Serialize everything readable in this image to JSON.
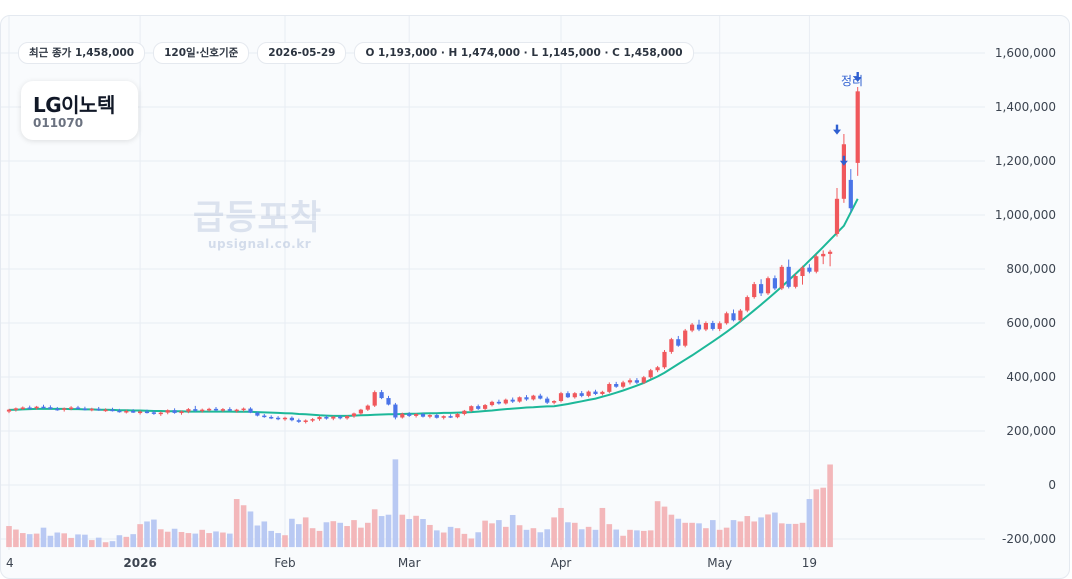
{
  "pills": {
    "last_close": "최근 종가 1,458,000",
    "period": "120일·신호기준",
    "date": "2026-05-29",
    "ohlc": "O 1,193,000 · H 1,474,000 · L 1,145,000 · C 1,458,000"
  },
  "stock": {
    "name": "LG이노텍",
    "code": "011070"
  },
  "watermark": {
    "title": "급등포착",
    "url": "upsignal.co.kr"
  },
  "signal_label": "정리",
  "colors": {
    "up": "#f0585c",
    "down": "#4a74e8",
    "ma": "#1db899",
    "vol_up": "#f3b7ba",
    "vol_down": "#b9c9f3",
    "arrow": "#2f5fd0"
  },
  "chart_data": {
    "type": "candlestick",
    "title": "",
    "xlabel": "",
    "ylabel": "",
    "ylim": [
      -230000,
      1730000
    ],
    "y_ticks": [
      1600000,
      1400000,
      1200000,
      1000000,
      800000,
      600000,
      400000,
      200000,
      0,
      -200000
    ],
    "y_tick_labels": [
      "1,600,000",
      "1,400,000",
      "1,200,000",
      "1,000,000",
      "800,000",
      "600,000",
      "400,000",
      "200,000",
      "0",
      "-200,000"
    ],
    "x_ticks": [
      {
        "label": "4",
        "index": 0
      },
      {
        "label": "2026",
        "index": 19
      },
      {
        "label": "Feb",
        "index": 40
      },
      {
        "label": "Mar",
        "index": 58
      },
      {
        "label": "Apr",
        "index": 80
      },
      {
        "label": "May",
        "index": 103
      },
      {
        "label": "19",
        "index": 116
      }
    ],
    "grid": true,
    "candles": [
      [
        272000,
        282000,
        266000,
        279000
      ],
      [
        279000,
        287000,
        272000,
        284000
      ],
      [
        284000,
        291000,
        278000,
        287000
      ],
      [
        287000,
        294000,
        281000,
        285000
      ],
      [
        285000,
        293000,
        279000,
        290000
      ],
      [
        290000,
        297000,
        283000,
        288000
      ],
      [
        288000,
        295000,
        280000,
        282000
      ],
      [
        282000,
        289000,
        275000,
        279000
      ],
      [
        279000,
        287000,
        272000,
        284000
      ],
      [
        284000,
        292000,
        277000,
        287000
      ],
      [
        287000,
        293000,
        280000,
        283000
      ],
      [
        283000,
        290000,
        276000,
        279000
      ],
      [
        279000,
        286000,
        273000,
        282000
      ],
      [
        282000,
        289000,
        275000,
        277000
      ],
      [
        277000,
        284000,
        271000,
        279000
      ],
      [
        279000,
        286000,
        272000,
        275000
      ],
      [
        275000,
        282000,
        268000,
        271000
      ],
      [
        271000,
        279000,
        265000,
        274000
      ],
      [
        274000,
        281000,
        267000,
        268000
      ],
      [
        268000,
        276000,
        261000,
        272000
      ],
      [
        272000,
        279000,
        265000,
        269000
      ],
      [
        269000,
        276000,
        260000,
        264000
      ],
      [
        264000,
        272000,
        256000,
        268000
      ],
      [
        268000,
        280000,
        262000,
        277000
      ],
      [
        277000,
        284000,
        264000,
        267000
      ],
      [
        267000,
        276000,
        260000,
        272000
      ],
      [
        272000,
        285000,
        266000,
        281000
      ],
      [
        281000,
        293000,
        271000,
        275000
      ],
      [
        275000,
        283000,
        268000,
        279000
      ],
      [
        279000,
        286000,
        272000,
        282000
      ],
      [
        282000,
        289000,
        274000,
        278000
      ],
      [
        278000,
        285000,
        271000,
        281000
      ],
      [
        281000,
        288000,
        274000,
        276000
      ],
      [
        276000,
        282000,
        268000,
        279000
      ],
      [
        279000,
        287000,
        272000,
        283000
      ],
      [
        283000,
        288000,
        266000,
        268000
      ],
      [
        268000,
        272000,
        254000,
        257000
      ],
      [
        257000,
        263000,
        249000,
        252000
      ],
      [
        252000,
        258000,
        244000,
        249000
      ],
      [
        249000,
        255000,
        240000,
        244000
      ],
      [
        244000,
        253000,
        238000,
        249000
      ],
      [
        249000,
        254000,
        236000,
        240000
      ],
      [
        240000,
        246000,
        230000,
        234000
      ],
      [
        234000,
        243000,
        228000,
        239000
      ],
      [
        239000,
        248000,
        233000,
        244000
      ],
      [
        244000,
        255000,
        238000,
        252000
      ],
      [
        252000,
        258000,
        242000,
        246000
      ],
      [
        246000,
        256000,
        240000,
        253000
      ],
      [
        253000,
        259000,
        243000,
        247000
      ],
      [
        247000,
        258000,
        242000,
        255000
      ],
      [
        255000,
        268000,
        249000,
        265000
      ],
      [
        265000,
        282000,
        260000,
        279000
      ],
      [
        279000,
        298000,
        274000,
        294000
      ],
      [
        294000,
        350000,
        289000,
        344000
      ],
      [
        344000,
        352000,
        318000,
        322000
      ],
      [
        322000,
        330000,
        295000,
        298000
      ],
      [
        298000,
        304000,
        243000,
        250000
      ],
      [
        250000,
        268000,
        246000,
        264000
      ],
      [
        264000,
        270000,
        252000,
        256000
      ],
      [
        256000,
        266000,
        250000,
        263000
      ],
      [
        263000,
        268000,
        250000,
        253000
      ],
      [
        253000,
        262000,
        247000,
        259000
      ],
      [
        259000,
        264000,
        246000,
        249000
      ],
      [
        249000,
        258000,
        243000,
        255000
      ],
      [
        255000,
        262000,
        248000,
        251000
      ],
      [
        251000,
        266000,
        247000,
        263000
      ],
      [
        263000,
        278000,
        258000,
        275000
      ],
      [
        275000,
        295000,
        270000,
        292000
      ],
      [
        292000,
        298000,
        278000,
        282000
      ],
      [
        282000,
        300000,
        277000,
        296000
      ],
      [
        296000,
        312000,
        291000,
        308000
      ],
      [
        308000,
        316000,
        298000,
        302000
      ],
      [
        302000,
        320000,
        298000,
        316000
      ],
      [
        316000,
        324000,
        304000,
        309000
      ],
      [
        309000,
        328000,
        305000,
        325000
      ],
      [
        325000,
        333000,
        312000,
        317000
      ],
      [
        317000,
        334000,
        313000,
        331000
      ],
      [
        331000,
        338000,
        317000,
        320000
      ],
      [
        320000,
        327000,
        300000,
        305000
      ],
      [
        305000,
        314000,
        299000,
        311000
      ],
      [
        311000,
        345000,
        306000,
        340000
      ],
      [
        340000,
        347000,
        322000,
        325000
      ],
      [
        325000,
        344000,
        320000,
        340000
      ],
      [
        340000,
        348000,
        325000,
        330000
      ],
      [
        330000,
        350000,
        325000,
        346000
      ],
      [
        346000,
        353000,
        333000,
        337000
      ],
      [
        337000,
        349000,
        332000,
        345000
      ],
      [
        345000,
        380000,
        340000,
        374000
      ],
      [
        374000,
        382000,
        360000,
        364000
      ],
      [
        364000,
        386000,
        358000,
        380000
      ],
      [
        380000,
        395000,
        372000,
        388000
      ],
      [
        388000,
        396000,
        374000,
        379000
      ],
      [
        379000,
        404000,
        374000,
        399000
      ],
      [
        399000,
        430000,
        394000,
        425000
      ],
      [
        425000,
        441000,
        418000,
        436000
      ],
      [
        436000,
        500000,
        430000,
        493000
      ],
      [
        493000,
        545000,
        486000,
        540000
      ],
      [
        540000,
        552000,
        512000,
        516000
      ],
      [
        516000,
        578000,
        510000,
        572000
      ],
      [
        572000,
        600000,
        566000,
        594000
      ],
      [
        594000,
        612000,
        570000,
        576000
      ],
      [
        576000,
        606000,
        570000,
        600000
      ],
      [
        600000,
        608000,
        572000,
        578000
      ],
      [
        578000,
        606000,
        570000,
        599000
      ],
      [
        599000,
        642000,
        594000,
        636000
      ],
      [
        636000,
        650000,
        606000,
        610000
      ],
      [
        610000,
        652000,
        604000,
        646000
      ],
      [
        646000,
        702000,
        640000,
        696000
      ],
      [
        696000,
        752000,
        690000,
        744000
      ],
      [
        744000,
        762000,
        700000,
        710000
      ],
      [
        710000,
        772000,
        704000,
        766000
      ],
      [
        766000,
        776000,
        722000,
        728000
      ],
      [
        728000,
        815000,
        722000,
        808000
      ],
      [
        808000,
        835000,
        728000,
        734000
      ],
      [
        734000,
        782000,
        728000,
        774000
      ],
      [
        774000,
        812000,
        742000,
        805000
      ],
      [
        805000,
        818000,
        784000,
        790000
      ],
      [
        790000,
        854000,
        784000,
        847000
      ],
      [
        847000,
        869000,
        818000,
        856000
      ],
      [
        856000,
        871000,
        810000,
        864000
      ],
      [
        930000,
        1100000,
        920000,
        1060000
      ],
      [
        1060000,
        1300000,
        1045000,
        1262000
      ],
      [
        1130000,
        1170000,
        1010000,
        1025000
      ],
      [
        1193000,
        1474000,
        1145000,
        1458000
      ]
    ],
    "ma": [
      278000,
      279000,
      280000,
      281000,
      282000,
      282000,
      282000,
      282000,
      282000,
      281000,
      281000,
      280000,
      280000,
      279000,
      279000,
      278000,
      277000,
      277000,
      276000,
      276000,
      275000,
      274000,
      274000,
      273000,
      273000,
      273000,
      272000,
      272000,
      272000,
      272000,
      272000,
      272000,
      272000,
      271000,
      271000,
      271000,
      270000,
      269000,
      268000,
      267000,
      266000,
      265000,
      263000,
      262000,
      260000,
      258000,
      257000,
      256000,
      256000,
      256000,
      257000,
      258000,
      259000,
      260000,
      261000,
      262000,
      262000,
      263000,
      264000,
      264000,
      265000,
      266000,
      266000,
      267000,
      267000,
      268000,
      269000,
      270000,
      272000,
      274000,
      276000,
      279000,
      281000,
      283000,
      285000,
      287000,
      288000,
      290000,
      291000,
      292000,
      296000,
      300000,
      305000,
      310000,
      315000,
      320000,
      327000,
      334000,
      342000,
      350000,
      359000,
      368000,
      378000,
      390000,
      402000,
      416000,
      432000,
      448000,
      464000,
      480000,
      497000,
      514000,
      531000,
      549000,
      567000,
      586000,
      606000,
      626000,
      647000,
      668000,
      690000,
      712000,
      735000,
      758000,
      782000,
      806000,
      831000,
      856000,
      882000,
      908000,
      934000,
      960000,
      1010000,
      1060000
    ],
    "volume": [
      -152000,
      -165000,
      -178000,
      -182000,
      -180000,
      -158000,
      -188000,
      -176000,
      -179000,
      -196000,
      -183000,
      -184000,
      -204000,
      -195000,
      -212000,
      -208000,
      -186000,
      -192000,
      -182000,
      -145000,
      -135000,
      -128000,
      -164000,
      -173000,
      -162000,
      -174000,
      -178000,
      -180000,
      -166000,
      -178000,
      -172000,
      -176000,
      -180000,
      -52000,
      -75000,
      -98000,
      -150000,
      -135000,
      -170000,
      -178000,
      -186000,
      -125000,
      -145000,
      -120000,
      -160000,
      -170000,
      -138000,
      -134000,
      -140000,
      -152000,
      -130000,
      -158000,
      -140000,
      -90000,
      -115000,
      -110000,
      95000,
      -110000,
      -126000,
      -114000,
      -126000,
      -148000,
      -168000,
      -176000,
      -155000,
      -160000,
      -181000,
      -198000,
      -175000,
      -132000,
      -142000,
      -130000,
      -155000,
      -111000,
      -149000,
      -166000,
      -160000,
      -175000,
      -164000,
      -120000,
      -85000,
      -138000,
      -140000,
      -164000,
      -155000,
      -166000,
      -85000,
      -145000,
      -165000,
      -188000,
      -166000,
      -168000,
      -170000,
      -168000,
      -60000,
      -80000,
      -110000,
      -125000,
      -140000,
      -140000,
      -142000,
      -160000,
      -130000,
      -166000,
      -158000,
      -130000,
      -135000,
      -115000,
      -135000,
      -120000,
      -109000,
      -102000,
      -142000,
      -144000,
      -144000,
      -140000,
      -52000,
      -16000,
      -10000,
      76000
    ]
  }
}
